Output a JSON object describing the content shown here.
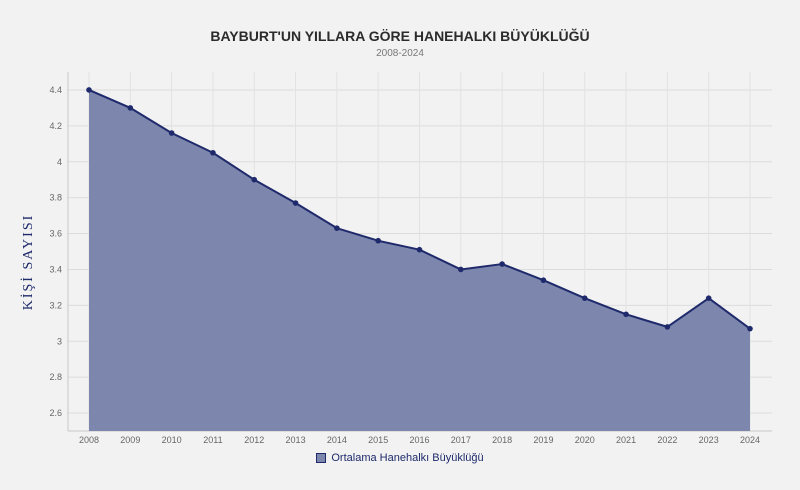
{
  "chart_data": {
    "type": "area",
    "title": "BAYBURT'UN YILLARA GÖRE HANEHALKI BÜYÜKLÜĞÜ",
    "subtitle": "2008-2024",
    "xlabel": "",
    "ylabel": "KİŞİ SAYISI",
    "x": [
      "2008",
      "2009",
      "2010",
      "2011",
      "2012",
      "2013",
      "2014",
      "2015",
      "2016",
      "2017",
      "2018",
      "2019",
      "2020",
      "2021",
      "2022",
      "2023",
      "2024"
    ],
    "series": [
      {
        "name": "Ortalama Hanehalkı Büyüklüğü",
        "values": [
          4.4,
          4.3,
          4.16,
          4.05,
          3.9,
          3.77,
          3.63,
          3.56,
          3.51,
          3.4,
          3.43,
          3.34,
          3.24,
          3.15,
          3.08,
          3.24,
          3.07
        ]
      }
    ],
    "ylim": [
      2.5,
      4.5
    ],
    "yticks": [
      "2.6",
      "2.8",
      "3",
      "3.2",
      "3.4",
      "3.6",
      "3.8",
      "4",
      "4.2",
      "4.4"
    ],
    "grid": true,
    "legend_position": "bottom-center",
    "colors": {
      "line": "#1e2a6b",
      "fill": "#7d86ac",
      "background": "#f2f2f2",
      "grid": "#dcdcdc"
    }
  }
}
